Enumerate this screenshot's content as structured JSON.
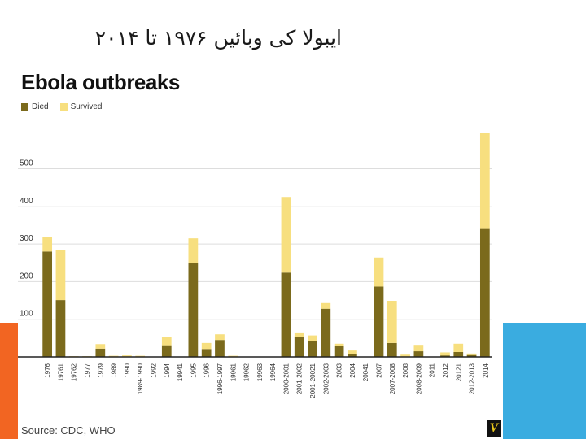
{
  "slide": {
    "title": "ایبولا کی وبائیں ۱۹۷۶ تا ۲۰۱۴"
  },
  "colors": {
    "died": "#7b6a1c",
    "survived": "#f7df7f",
    "accent_orange": "#f26522",
    "accent_blue": "#3aace0"
  },
  "chart_data": {
    "type": "bar",
    "stacked": true,
    "title": "Ebola outbreaks",
    "source": "Source: CDC, WHO",
    "logo_text": "V",
    "legend_position": "top-left",
    "grid": true,
    "ylim": [
      0,
      600
    ],
    "yticks": [
      100,
      200,
      300,
      400,
      500
    ],
    "categories": [
      "1976",
      "19761",
      "19762",
      "1977",
      "1979",
      "1989",
      "1990",
      "1989-1990",
      "1992",
      "1994",
      "19941",
      "1995",
      "1996",
      "1996-1997",
      "19961",
      "19962",
      "19963",
      "19964",
      "2000-2001",
      "2001-2002",
      "2001-20021",
      "2002-2003",
      "2003",
      "2004",
      "20041",
      "2007",
      "2007-2008",
      "2008",
      "2008-2009",
      "2011",
      "2012",
      "20121",
      "2012-2013",
      "2014"
    ],
    "series": [
      {
        "name": "Died",
        "values": [
          280,
          151,
          0,
          1,
          22,
          0,
          0,
          0,
          0,
          31,
          1,
          250,
          21,
          45,
          1,
          0,
          0,
          1,
          224,
          53,
          43,
          128,
          29,
          7,
          1,
          187,
          37,
          0,
          15,
          1,
          4,
          13,
          5,
          340
        ]
      },
      {
        "name": "Survived",
        "values": [
          38,
          133,
          2,
          1,
          12,
          3,
          4,
          3,
          0,
          21,
          0,
          65,
          16,
          15,
          2,
          0,
          0,
          0,
          201,
          12,
          14,
          15,
          6,
          10,
          0,
          77,
          112,
          6,
          17,
          0,
          8,
          22,
          4,
          255
        ]
      }
    ]
  }
}
